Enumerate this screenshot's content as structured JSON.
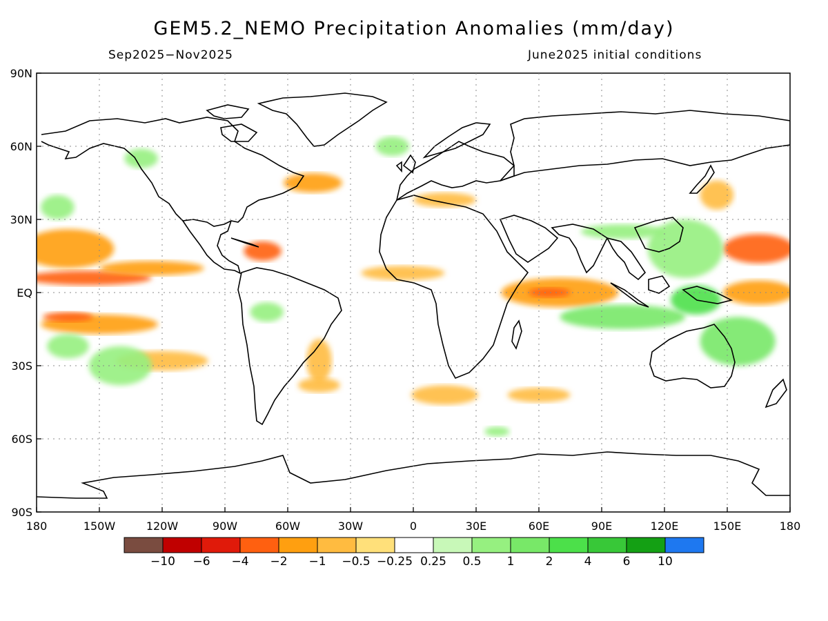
{
  "title": "GEM5.2_NEMO Precipitation Anomalies (mm/day)",
  "subtitle_left": "Sep2025−Nov2025",
  "subtitle_right": "June2025 initial conditions",
  "lat_labels": [
    "90N",
    "60N",
    "30N",
    "EQ",
    "30S",
    "60S",
    "90S"
  ],
  "lat_values": [
    90,
    60,
    30,
    0,
    -30,
    -60,
    -90
  ],
  "lon_labels": [
    "180",
    "150W",
    "120W",
    "90W",
    "60W",
    "30W",
    "0",
    "30E",
    "60E",
    "90E",
    "120E",
    "150E",
    "180"
  ],
  "lon_values": [
    -180,
    -150,
    -120,
    -90,
    -60,
    -30,
    0,
    30,
    60,
    90,
    120,
    150,
    180
  ],
  "colorbar": {
    "colors": [
      "#7a4c40",
      "#c00000",
      "#e01a0a",
      "#ff6010",
      "#ff9f10",
      "#ffbb40",
      "#ffe07a",
      "#ffffff",
      "#c8f8b8",
      "#96f080",
      "#78e868",
      "#4ce04a",
      "#38c838",
      "#14a014",
      "#1e78f0"
    ],
    "labels": [
      "−10",
      "−6",
      "−4",
      "−2",
      "−1",
      "−0.5",
      "−0.25",
      "0.25",
      "0.5",
      "1",
      "2",
      "4",
      "6",
      "10"
    ]
  },
  "anomalies": [
    {
      "lon": -165,
      "lat": 18,
      "rx": 22,
      "ry": 8,
      "level": "-1"
    },
    {
      "lon": -155,
      "lat": 6,
      "rx": 30,
      "ry": 3,
      "level": "-2"
    },
    {
      "lon": -125,
      "lat": 10,
      "rx": 25,
      "ry": 3,
      "level": "-1"
    },
    {
      "lon": -150,
      "lat": -13,
      "rx": 28,
      "ry": 4,
      "level": "-1"
    },
    {
      "lon": -165,
      "lat": -10,
      "rx": 12,
      "ry": 2,
      "level": "-2"
    },
    {
      "lon": -120,
      "lat": -28,
      "rx": 22,
      "ry": 4,
      "level": "-0.5"
    },
    {
      "lon": -48,
      "lat": 45,
      "rx": 14,
      "ry": 4,
      "level": "-1"
    },
    {
      "lon": -72,
      "lat": 17,
      "rx": 9,
      "ry": 4,
      "level": "-2"
    },
    {
      "lon": -45,
      "lat": -28,
      "rx": 6,
      "ry": 9,
      "level": "-0.5"
    },
    {
      "lon": -45,
      "lat": -38,
      "rx": 10,
      "ry": 3,
      "level": "-0.5"
    },
    {
      "lon": -5,
      "lat": 8,
      "rx": 20,
      "ry": 3,
      "level": "-0.5"
    },
    {
      "lon": 15,
      "lat": 38,
      "rx": 15,
      "ry": 3,
      "level": "-0.5"
    },
    {
      "lon": 70,
      "lat": 0,
      "rx": 28,
      "ry": 6,
      "level": "-1"
    },
    {
      "lon": 65,
      "lat": 0,
      "rx": 10,
      "ry": 2,
      "level": "-2"
    },
    {
      "lon": 165,
      "lat": 18,
      "rx": 17,
      "ry": 6,
      "level": "-2"
    },
    {
      "lon": 165,
      "lat": 0,
      "rx": 17,
      "ry": 5,
      "level": "-1"
    },
    {
      "lon": 145,
      "lat": 40,
      "rx": 8,
      "ry": 6,
      "level": "-0.5"
    },
    {
      "lon": 15,
      "lat": -42,
      "rx": 16,
      "ry": 4,
      "level": "-0.5"
    },
    {
      "lon": 60,
      "lat": -42,
      "rx": 15,
      "ry": 3,
      "level": "-0.5"
    },
    {
      "lon": 130,
      "lat": 18,
      "rx": 18,
      "ry": 12,
      "level": "0.5"
    },
    {
      "lon": 100,
      "lat": -10,
      "rx": 30,
      "ry": 5,
      "level": "1"
    },
    {
      "lon": 155,
      "lat": -20,
      "rx": 18,
      "ry": 10,
      "level": "1"
    },
    {
      "lon": 135,
      "lat": -3,
      "rx": 12,
      "ry": 6,
      "level": "2"
    },
    {
      "lon": 100,
      "lat": 25,
      "rx": 20,
      "ry": 3,
      "level": "0.5"
    },
    {
      "lon": -170,
      "lat": 35,
      "rx": 8,
      "ry": 5,
      "level": "0.5"
    },
    {
      "lon": -165,
      "lat": -22,
      "rx": 10,
      "ry": 5,
      "level": "0.5"
    },
    {
      "lon": -140,
      "lat": -30,
      "rx": 15,
      "ry": 8,
      "level": "0.5"
    },
    {
      "lon": -130,
      "lat": 55,
      "rx": 8,
      "ry": 4,
      "level": "0.5"
    },
    {
      "lon": -10,
      "lat": 60,
      "rx": 8,
      "ry": 4,
      "level": "0.5"
    },
    {
      "lon": -70,
      "lat": -8,
      "rx": 8,
      "ry": 4,
      "level": "0.5"
    },
    {
      "lon": 40,
      "lat": -57,
      "rx": 6,
      "ry": 2,
      "level": "0.5"
    }
  ]
}
